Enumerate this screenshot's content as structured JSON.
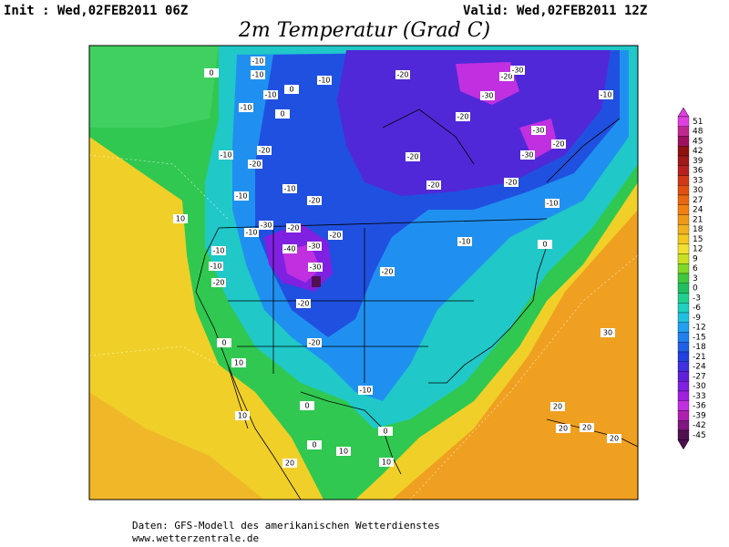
{
  "header": {
    "init": "Init : Wed,02FEB2011 06Z",
    "valid": "Valid: Wed,02FEB2011 12Z",
    "title": "2m Temperatur (Grad C)"
  },
  "colorbar": {
    "labels": [
      51,
      48,
      45,
      42,
      39,
      36,
      33,
      30,
      27,
      24,
      21,
      18,
      15,
      12,
      9,
      6,
      3,
      0,
      -3,
      -6,
      -9,
      -12,
      -15,
      -18,
      -21,
      -24,
      -27,
      -30,
      -33,
      -36,
      -39,
      -42,
      -45
    ],
    "colors": [
      "#e040e0",
      "#c02890",
      "#a01060",
      "#901010",
      "#a01818",
      "#b82020",
      "#d03818",
      "#e05010",
      "#e86810",
      "#f08010",
      "#f09818",
      "#f0b020",
      "#f0c820",
      "#f0e030",
      "#c8e020",
      "#80d828",
      "#40c840",
      "#20c060",
      "#20d090",
      "#20d0c0",
      "#20c0e0",
      "#20a0f0",
      "#2080f0",
      "#2060e8",
      "#2040e0",
      "#4030e0",
      "#6020d8",
      "#8020e0",
      "#a020e0",
      "#c030e0",
      "#b020b0",
      "#801880",
      "#501050"
    ]
  },
  "map": {
    "contour_labels": [
      "-10",
      "-10",
      "-10",
      "-10",
      "0",
      "-10",
      "0",
      "-10",
      "-20",
      "-20",
      "-10",
      "-10",
      "-20",
      "-30",
      "-10",
      "-20",
      "-30",
      "-20",
      "-10",
      "-10",
      "-20",
      "-40",
      "-30",
      "-20",
      "-20",
      "0",
      "10",
      "10",
      "0",
      "-10",
      "0",
      "0",
      "10",
      "10",
      "20",
      "10",
      "-20",
      "-10",
      "0",
      "-20",
      "-20",
      "-20",
      "-10",
      "-20",
      "-20",
      "-30",
      "-20",
      "-30",
      "-30",
      "-30",
      "-20",
      "-10",
      "30",
      "20",
      "20",
      "20",
      "20",
      "0"
    ]
  },
  "footer": {
    "source": "Daten: GFS-Modell des amerikanischen Wetterdienstes",
    "url": "www.wetterzentrale.de"
  }
}
